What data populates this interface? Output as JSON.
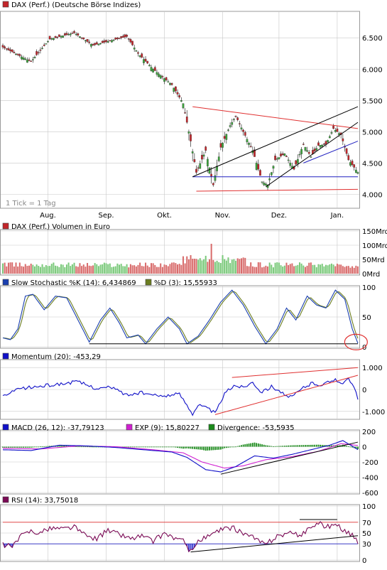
{
  "colors": {
    "price_up": "#3aa33a",
    "price_down": "#c2252a",
    "volume_up": "#7ac97a",
    "volume_down": "#d86a6a",
    "stoch_k": "#1a3fb0",
    "stoch_d": "#6b7d20",
    "momentum": "#1010c8",
    "macd": "#1010c8",
    "exp": "#d020d0",
    "divergence": "#1a8a1a",
    "rsi": "#7a0a55",
    "trend_red": "#e03030",
    "trend_black": "#000000",
    "trend_blue": "#2020c0",
    "grid": "#c8c8c8"
  },
  "chart_data": [
    {
      "type": "candlestick",
      "legend": "DAX (Perf.) (Deutsche Börse Indizes)",
      "note": "1 Tick = 1 Tag",
      "ylim": [
        3800,
        6900
      ],
      "yticks": [
        4000,
        4500,
        5000,
        5500,
        6000,
        6500
      ],
      "ytick_labels": [
        "4.000",
        "4.500",
        "5.000",
        "5.500",
        "6.000",
        "6.500"
      ],
      "xticks": [
        {
          "day": 24,
          "label": "Aug."
        },
        {
          "day": 55,
          "label": "Sep."
        },
        {
          "day": 86,
          "label": "Okt."
        },
        {
          "day": 117,
          "label": "Nov."
        },
        {
          "day": 147,
          "label": "Dez."
        },
        {
          "day": 178,
          "label": "Jan."
        }
      ],
      "close_key_points": [
        {
          "day": 0,
          "close": 6350
        },
        {
          "day": 15,
          "close": 6120
        },
        {
          "day": 25,
          "close": 6480
        },
        {
          "day": 38,
          "close": 6580
        },
        {
          "day": 48,
          "close": 6380
        },
        {
          "day": 58,
          "close": 6460
        },
        {
          "day": 66,
          "close": 6520
        },
        {
          "day": 72,
          "close": 6250
        },
        {
          "day": 80,
          "close": 6000
        },
        {
          "day": 90,
          "close": 5750
        },
        {
          "day": 96,
          "close": 5450
        },
        {
          "day": 100,
          "close": 4850
        },
        {
          "day": 103,
          "close": 4350
        },
        {
          "day": 108,
          "close": 4700
        },
        {
          "day": 112,
          "close": 4150
        },
        {
          "day": 116,
          "close": 4750
        },
        {
          "day": 121,
          "close": 5100
        },
        {
          "day": 124,
          "close": 5250
        },
        {
          "day": 128,
          "close": 5000
        },
        {
          "day": 133,
          "close": 4700
        },
        {
          "day": 138,
          "close": 4200
        },
        {
          "day": 141,
          "close": 4150
        },
        {
          "day": 145,
          "close": 4550
        },
        {
          "day": 150,
          "close": 4650
        },
        {
          "day": 155,
          "close": 4400
        },
        {
          "day": 160,
          "close": 4800
        },
        {
          "day": 164,
          "close": 4600
        },
        {
          "day": 168,
          "close": 4780
        },
        {
          "day": 172,
          "close": 4800
        },
        {
          "day": 176,
          "close": 5050
        },
        {
          "day": 180,
          "close": 4950
        },
        {
          "day": 184,
          "close": 4550
        },
        {
          "day": 189,
          "close": 4350
        }
      ]
    },
    {
      "type": "bar",
      "legend": "DAX (Perf.) Volumen in Euro",
      "ylim": [
        0,
        150
      ],
      "ytick_labels": [
        "150Mrd",
        "100Mrd",
        "50Mrd",
        "0Mrd"
      ]
    },
    {
      "type": "line",
      "legend_k": "Slow Stochastic %K (14): 6,434869",
      "legend_d": "%D (3): 15,55933",
      "ylim": [
        0,
        100
      ],
      "ytick_labels": [
        "100",
        "50",
        "0"
      ],
      "k_key_points": [
        {
          "day": 0,
          "v": 15
        },
        {
          "day": 4,
          "v": 12
        },
        {
          "day": 8,
          "v": 30
        },
        {
          "day": 12,
          "v": 85
        },
        {
          "day": 16,
          "v": 88
        },
        {
          "day": 22,
          "v": 62
        },
        {
          "day": 28,
          "v": 85
        },
        {
          "day": 34,
          "v": 82
        },
        {
          "day": 40,
          "v": 45
        },
        {
          "day": 46,
          "v": 8
        },
        {
          "day": 52,
          "v": 45
        },
        {
          "day": 57,
          "v": 65
        },
        {
          "day": 62,
          "v": 40
        },
        {
          "day": 66,
          "v": 15
        },
        {
          "day": 72,
          "v": 20
        },
        {
          "day": 76,
          "v": 5
        },
        {
          "day": 82,
          "v": 30
        },
        {
          "day": 88,
          "v": 50
        },
        {
          "day": 94,
          "v": 30
        },
        {
          "day": 98,
          "v": 5
        },
        {
          "day": 104,
          "v": 18
        },
        {
          "day": 110,
          "v": 45
        },
        {
          "day": 116,
          "v": 75
        },
        {
          "day": 122,
          "v": 95
        },
        {
          "day": 128,
          "v": 70
        },
        {
          "day": 134,
          "v": 35
        },
        {
          "day": 140,
          "v": 5
        },
        {
          "day": 146,
          "v": 30
        },
        {
          "day": 151,
          "v": 65
        },
        {
          "day": 156,
          "v": 45
        },
        {
          "day": 162,
          "v": 85
        },
        {
          "day": 167,
          "v": 70
        },
        {
          "day": 172,
          "v": 65
        },
        {
          "day": 177,
          "v": 95
        },
        {
          "day": 182,
          "v": 80
        },
        {
          "day": 186,
          "v": 30
        },
        {
          "day": 189,
          "v": 6
        }
      ]
    },
    {
      "type": "line",
      "legend": "Momentum (20): -453,29",
      "ylim": [
        -1300,
        1300
      ],
      "ytick_labels": [
        "1.000",
        "0",
        "-1.000"
      ],
      "key_points": [
        {
          "day": 0,
          "v": -300
        },
        {
          "day": 10,
          "v": 50
        },
        {
          "day": 20,
          "v": 150
        },
        {
          "day": 30,
          "v": 250
        },
        {
          "day": 40,
          "v": 350
        },
        {
          "day": 50,
          "v": 50
        },
        {
          "day": 58,
          "v": 100
        },
        {
          "day": 66,
          "v": -250
        },
        {
          "day": 74,
          "v": -150
        },
        {
          "day": 82,
          "v": -300
        },
        {
          "day": 90,
          "v": -250
        },
        {
          "day": 94,
          "v": -200
        },
        {
          "day": 98,
          "v": -700
        },
        {
          "day": 101,
          "v": -1100
        },
        {
          "day": 104,
          "v": -700
        },
        {
          "day": 110,
          "v": -900
        },
        {
          "day": 113,
          "v": -1100
        },
        {
          "day": 118,
          "v": -200
        },
        {
          "day": 123,
          "v": 200
        },
        {
          "day": 128,
          "v": 100
        },
        {
          "day": 133,
          "v": 350
        },
        {
          "day": 138,
          "v": -150
        },
        {
          "day": 143,
          "v": 150
        },
        {
          "day": 148,
          "v": -100
        },
        {
          "day": 152,
          "v": -400
        },
        {
          "day": 156,
          "v": -200
        },
        {
          "day": 160,
          "v": 100
        },
        {
          "day": 165,
          "v": 300
        },
        {
          "day": 170,
          "v": 200
        },
        {
          "day": 176,
          "v": 450
        },
        {
          "day": 180,
          "v": 300
        },
        {
          "day": 184,
          "v": 450
        },
        {
          "day": 187,
          "v": 100
        },
        {
          "day": 189,
          "v": -450
        }
      ]
    },
    {
      "type": "line",
      "legend_macd": "MACD (26, 12): -37,79123",
      "legend_exp": "EXP (9): 15,80227",
      "legend_div": "Divergence: -53,5935",
      "ylim": [
        -600,
        200
      ],
      "ytick_labels": [
        "200",
        "0",
        "-200",
        "-400",
        "-600"
      ],
      "macd_key_points": [
        {
          "day": 0,
          "v": -40
        },
        {
          "day": 15,
          "v": -50
        },
        {
          "day": 30,
          "v": 20
        },
        {
          "day": 45,
          "v": 10
        },
        {
          "day": 60,
          "v": -10
        },
        {
          "day": 75,
          "v": -40
        },
        {
          "day": 90,
          "v": -70
        },
        {
          "day": 98,
          "v": -140
        },
        {
          "day": 108,
          "v": -300
        },
        {
          "day": 116,
          "v": -330
        },
        {
          "day": 124,
          "v": -260
        },
        {
          "day": 134,
          "v": -120
        },
        {
          "day": 144,
          "v": -150
        },
        {
          "day": 154,
          "v": -100
        },
        {
          "day": 164,
          "v": -40
        },
        {
          "day": 174,
          "v": 20
        },
        {
          "day": 181,
          "v": 80
        },
        {
          "day": 189,
          "v": -38
        }
      ],
      "exp_key_points": [
        {
          "day": 0,
          "v": -20
        },
        {
          "day": 20,
          "v": -30
        },
        {
          "day": 40,
          "v": 10
        },
        {
          "day": 60,
          "v": 0
        },
        {
          "day": 80,
          "v": -40
        },
        {
          "day": 96,
          "v": -80
        },
        {
          "day": 106,
          "v": -200
        },
        {
          "day": 118,
          "v": -280
        },
        {
          "day": 128,
          "v": -250
        },
        {
          "day": 140,
          "v": -170
        },
        {
          "day": 154,
          "v": -130
        },
        {
          "day": 168,
          "v": -60
        },
        {
          "day": 180,
          "v": 40
        },
        {
          "day": 189,
          "v": 16
        }
      ]
    },
    {
      "type": "line",
      "legend": "RSI (14): 33,75018",
      "ylim": [
        0,
        100
      ],
      "ytick_labels": [
        "100",
        "70",
        "50",
        "30",
        "0"
      ],
      "key_points": [
        {
          "day": 0,
          "v": 28
        },
        {
          "day": 5,
          "v": 25
        },
        {
          "day": 10,
          "v": 45
        },
        {
          "day": 15,
          "v": 55
        },
        {
          "day": 20,
          "v": 50
        },
        {
          "day": 26,
          "v": 60
        },
        {
          "day": 32,
          "v": 58
        },
        {
          "day": 38,
          "v": 62
        },
        {
          "day": 44,
          "v": 45
        },
        {
          "day": 50,
          "v": 40
        },
        {
          "day": 56,
          "v": 55
        },
        {
          "day": 62,
          "v": 48
        },
        {
          "day": 68,
          "v": 40
        },
        {
          "day": 74,
          "v": 45
        },
        {
          "day": 80,
          "v": 35
        },
        {
          "day": 86,
          "v": 50
        },
        {
          "day": 92,
          "v": 40
        },
        {
          "day": 96,
          "v": 35
        },
        {
          "day": 100,
          "v": 15
        },
        {
          "day": 104,
          "v": 35
        },
        {
          "day": 110,
          "v": 45
        },
        {
          "day": 116,
          "v": 55
        },
        {
          "day": 122,
          "v": 60
        },
        {
          "day": 128,
          "v": 50
        },
        {
          "day": 134,
          "v": 40
        },
        {
          "day": 140,
          "v": 28
        },
        {
          "day": 146,
          "v": 45
        },
        {
          "day": 152,
          "v": 50
        },
        {
          "day": 158,
          "v": 45
        },
        {
          "day": 164,
          "v": 62
        },
        {
          "day": 168,
          "v": 68
        },
        {
          "day": 172,
          "v": 62
        },
        {
          "day": 177,
          "v": 66
        },
        {
          "day": 182,
          "v": 55
        },
        {
          "day": 186,
          "v": 45
        },
        {
          "day": 189,
          "v": 34
        }
      ]
    }
  ]
}
